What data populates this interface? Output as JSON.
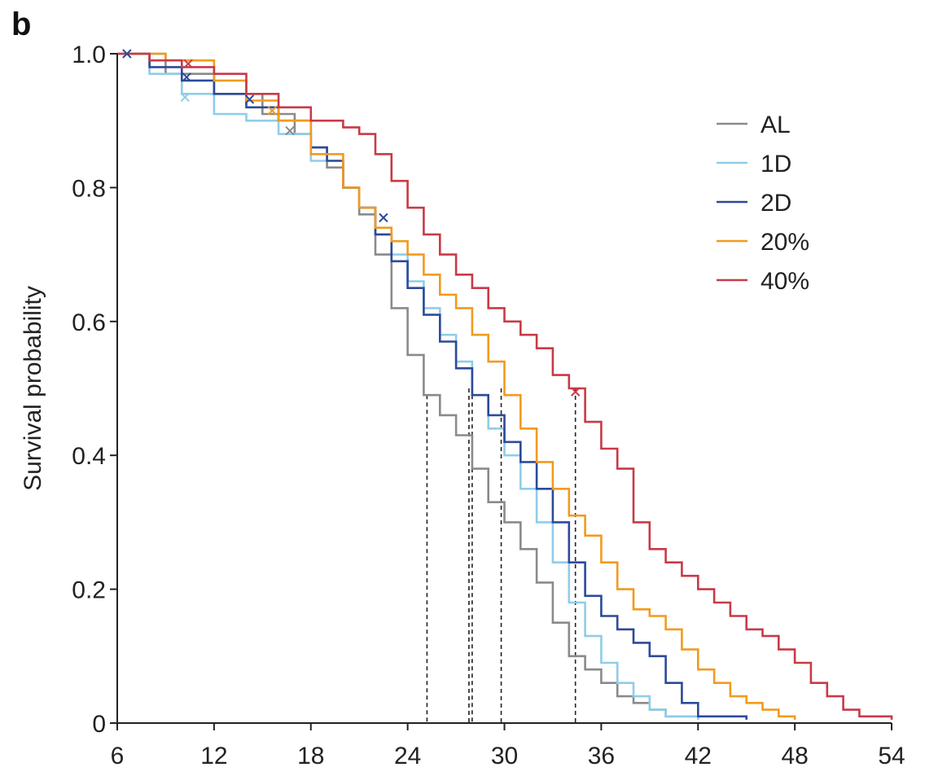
{
  "panel_label": "b",
  "chart_data": {
    "type": "line",
    "title": "",
    "xlabel": "",
    "ylabel": "Survival probability",
    "xlim": [
      6,
      54
    ],
    "ylim": [
      0,
      1
    ],
    "xticks": [
      6,
      12,
      18,
      24,
      30,
      36,
      42,
      48,
      54
    ],
    "yticks": [
      0,
      0.2,
      0.4,
      0.6,
      0.8,
      1.0
    ],
    "ytick_labels": [
      "0",
      "0.2",
      "0.4",
      "0.6",
      "0.8",
      "1.0"
    ],
    "grid": false,
    "legend": "top-right",
    "series": [
      {
        "name": "AL",
        "color": "#8a8a8a",
        "points": [
          [
            6,
            1.0
          ],
          [
            9,
            0.97
          ],
          [
            12,
            0.94
          ],
          [
            15,
            0.91
          ],
          [
            17,
            0.88
          ],
          [
            18,
            0.86
          ],
          [
            19,
            0.83
          ],
          [
            20,
            0.8
          ],
          [
            21,
            0.76
          ],
          [
            22,
            0.7
          ],
          [
            23,
            0.62
          ],
          [
            24,
            0.55
          ],
          [
            25,
            0.49
          ],
          [
            26,
            0.46
          ],
          [
            27,
            0.43
          ],
          [
            28,
            0.38
          ],
          [
            29,
            0.33
          ],
          [
            30,
            0.3
          ],
          [
            31,
            0.26
          ],
          [
            32,
            0.21
          ],
          [
            33,
            0.15
          ],
          [
            34,
            0.1
          ],
          [
            35,
            0.08
          ],
          [
            36,
            0.06
          ],
          [
            37,
            0.04
          ],
          [
            38,
            0.03
          ],
          [
            39,
            0.02
          ],
          [
            40,
            0.01
          ],
          [
            42,
            0.005
          ]
        ],
        "median": 25.2
      },
      {
        "name": "1D",
        "color": "#8fcde8",
        "points": [
          [
            6,
            1.0
          ],
          [
            8,
            0.97
          ],
          [
            10,
            0.94
          ],
          [
            12,
            0.91
          ],
          [
            14,
            0.9
          ],
          [
            16,
            0.88
          ],
          [
            18,
            0.84
          ],
          [
            20,
            0.8
          ],
          [
            21,
            0.77
          ],
          [
            22,
            0.73
          ],
          [
            23,
            0.7
          ],
          [
            24,
            0.66
          ],
          [
            25,
            0.62
          ],
          [
            26,
            0.58
          ],
          [
            27,
            0.54
          ],
          [
            28,
            0.49
          ],
          [
            29,
            0.44
          ],
          [
            30,
            0.4
          ],
          [
            31,
            0.35
          ],
          [
            32,
            0.3
          ],
          [
            33,
            0.24
          ],
          [
            34,
            0.18
          ],
          [
            35,
            0.13
          ],
          [
            36,
            0.09
          ],
          [
            37,
            0.06
          ],
          [
            38,
            0.04
          ],
          [
            39,
            0.02
          ],
          [
            40,
            0.01
          ],
          [
            42,
            0.005
          ]
        ],
        "median": 27.8
      },
      {
        "name": "2D",
        "color": "#2c4a9a",
        "points": [
          [
            6,
            1.0
          ],
          [
            8,
            0.98
          ],
          [
            10,
            0.96
          ],
          [
            12,
            0.94
          ],
          [
            14,
            0.92
          ],
          [
            16,
            0.9
          ],
          [
            18,
            0.86
          ],
          [
            19,
            0.84
          ],
          [
            20,
            0.8
          ],
          [
            21,
            0.77
          ],
          [
            22,
            0.73
          ],
          [
            23,
            0.69
          ],
          [
            24,
            0.65
          ],
          [
            25,
            0.61
          ],
          [
            26,
            0.57
          ],
          [
            27,
            0.53
          ],
          [
            28,
            0.49
          ],
          [
            29,
            0.46
          ],
          [
            30,
            0.42
          ],
          [
            31,
            0.39
          ],
          [
            32,
            0.35
          ],
          [
            33,
            0.3
          ],
          [
            34,
            0.24
          ],
          [
            35,
            0.19
          ],
          [
            36,
            0.16
          ],
          [
            37,
            0.14
          ],
          [
            38,
            0.12
          ],
          [
            39,
            0.1
          ],
          [
            40,
            0.06
          ],
          [
            41,
            0.03
          ],
          [
            42,
            0.01
          ],
          [
            45,
            0.005
          ]
        ],
        "median": 28.0
      },
      {
        "name": "20%",
        "color": "#f29a1f",
        "points": [
          [
            6,
            1.0
          ],
          [
            9,
            0.99
          ],
          [
            12,
            0.96
          ],
          [
            14,
            0.93
          ],
          [
            16,
            0.9
          ],
          [
            18,
            0.85
          ],
          [
            20,
            0.8
          ],
          [
            21,
            0.77
          ],
          [
            22,
            0.74
          ],
          [
            23,
            0.72
          ],
          [
            24,
            0.7
          ],
          [
            25,
            0.67
          ],
          [
            26,
            0.64
          ],
          [
            27,
            0.62
          ],
          [
            28,
            0.58
          ],
          [
            29,
            0.54
          ],
          [
            30,
            0.49
          ],
          [
            31,
            0.44
          ],
          [
            32,
            0.39
          ],
          [
            33,
            0.35
          ],
          [
            34,
            0.31
          ],
          [
            35,
            0.28
          ],
          [
            36,
            0.24
          ],
          [
            37,
            0.2
          ],
          [
            38,
            0.17
          ],
          [
            39,
            0.16
          ],
          [
            40,
            0.14
          ],
          [
            41,
            0.11
          ],
          [
            42,
            0.08
          ],
          [
            43,
            0.06
          ],
          [
            44,
            0.04
          ],
          [
            45,
            0.03
          ],
          [
            46,
            0.02
          ],
          [
            47,
            0.01
          ],
          [
            48,
            0.005
          ]
        ],
        "median": 29.8
      },
      {
        "name": "40%",
        "color": "#c83a47",
        "points": [
          [
            6,
            1.0
          ],
          [
            8,
            0.99
          ],
          [
            10,
            0.98
          ],
          [
            12,
            0.97
          ],
          [
            14,
            0.94
          ],
          [
            16,
            0.92
          ],
          [
            18,
            0.9
          ],
          [
            20,
            0.89
          ],
          [
            21,
            0.88
          ],
          [
            22,
            0.85
          ],
          [
            23,
            0.81
          ],
          [
            24,
            0.77
          ],
          [
            25,
            0.73
          ],
          [
            26,
            0.7
          ],
          [
            27,
            0.67
          ],
          [
            28,
            0.65
          ],
          [
            29,
            0.62
          ],
          [
            30,
            0.6
          ],
          [
            31,
            0.58
          ],
          [
            32,
            0.56
          ],
          [
            33,
            0.52
          ],
          [
            34,
            0.5
          ],
          [
            35,
            0.45
          ],
          [
            36,
            0.41
          ],
          [
            37,
            0.38
          ],
          [
            38,
            0.3
          ],
          [
            39,
            0.26
          ],
          [
            40,
            0.24
          ],
          [
            41,
            0.22
          ],
          [
            42,
            0.2
          ],
          [
            43,
            0.18
          ],
          [
            44,
            0.16
          ],
          [
            45,
            0.14
          ],
          [
            46,
            0.13
          ],
          [
            47,
            0.11
          ],
          [
            48,
            0.09
          ],
          [
            49,
            0.06
          ],
          [
            50,
            0.04
          ],
          [
            51,
            0.02
          ],
          [
            52,
            0.01
          ],
          [
            54,
            0.005
          ]
        ],
        "median": 34.4
      }
    ],
    "median_lines": [
      25.2,
      27.8,
      28.0,
      29.8,
      34.4
    ],
    "censor_marks": [
      {
        "series": "2D",
        "x": 6.6,
        "y": 1.0
      },
      {
        "series": "40%",
        "x": 10.4,
        "y": 0.985
      },
      {
        "series": "2D",
        "x": 10.3,
        "y": 0.965
      },
      {
        "series": "1D",
        "x": 10.2,
        "y": 0.935
      },
      {
        "series": "2D",
        "x": 14.2,
        "y": 0.932
      },
      {
        "series": "20%",
        "x": 15.6,
        "y": 0.915
      },
      {
        "series": "AL",
        "x": 16.7,
        "y": 0.885
      },
      {
        "series": "2D",
        "x": 22.5,
        "y": 0.755
      },
      {
        "series": "40%",
        "x": 34.4,
        "y": 0.495
      }
    ]
  }
}
